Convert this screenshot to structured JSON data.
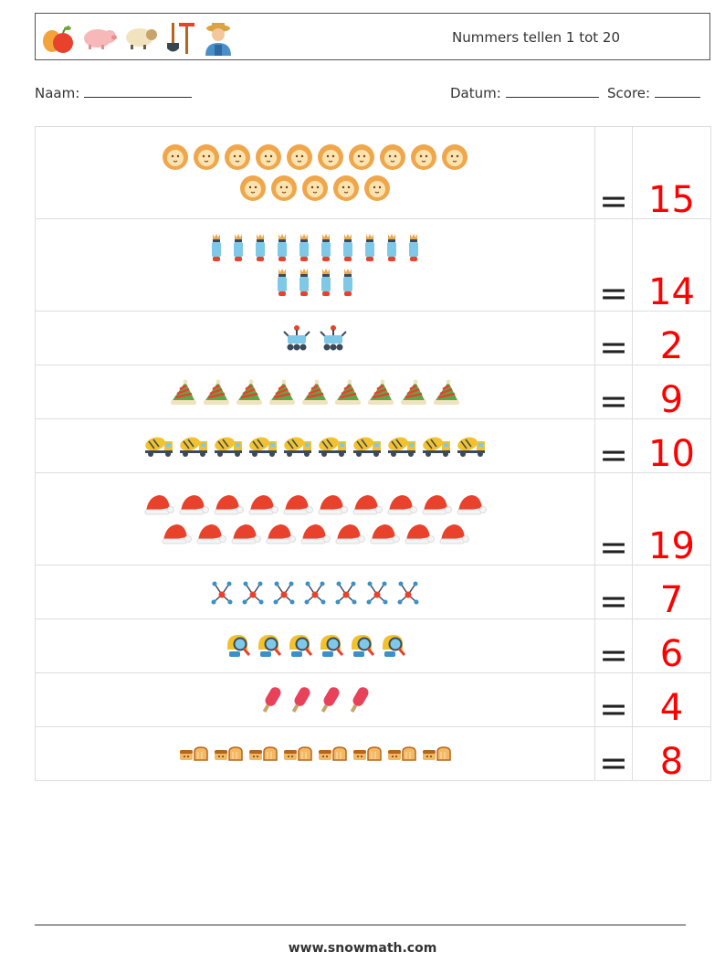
{
  "header": {
    "title": "Nummers tellen 1 tot 20",
    "icons": [
      "fruit-icon",
      "pig-icon",
      "sheep-icon",
      "garden-tools-icon",
      "farmer-icon"
    ]
  },
  "form": {
    "name_label": "Naam:",
    "date_label": "Datum:",
    "score_label": "Score:"
  },
  "equals_sign": "=",
  "rows": [
    {
      "icon": "lion",
      "count": 15,
      "answer": "15",
      "line_sizes": [
        10,
        5
      ]
    },
    {
      "icon": "rocket",
      "count": 14,
      "answer": "14",
      "line_sizes": [
        10,
        4
      ]
    },
    {
      "icon": "rover",
      "count": 2,
      "answer": "2",
      "line_sizes": [
        2
      ]
    },
    {
      "icon": "striped-hat",
      "count": 9,
      "answer": "9",
      "line_sizes": [
        9
      ]
    },
    {
      "icon": "mixer-truck",
      "count": 10,
      "answer": "10",
      "line_sizes": [
        10
      ]
    },
    {
      "icon": "santa-hat",
      "count": 19,
      "answer": "19",
      "line_sizes": [
        10,
        9
      ]
    },
    {
      "icon": "molecule",
      "count": 7,
      "answer": "7",
      "line_sizes": [
        7
      ]
    },
    {
      "icon": "magnifier-head",
      "count": 6,
      "answer": "6",
      "line_sizes": [
        6
      ]
    },
    {
      "icon": "popsicle",
      "count": 4,
      "answer": "4",
      "line_sizes": [
        4
      ]
    },
    {
      "icon": "bread",
      "count": 8,
      "answer": "8",
      "line_sizes": [
        8
      ]
    }
  ],
  "footer": {
    "url": "www.snowmath.com"
  }
}
